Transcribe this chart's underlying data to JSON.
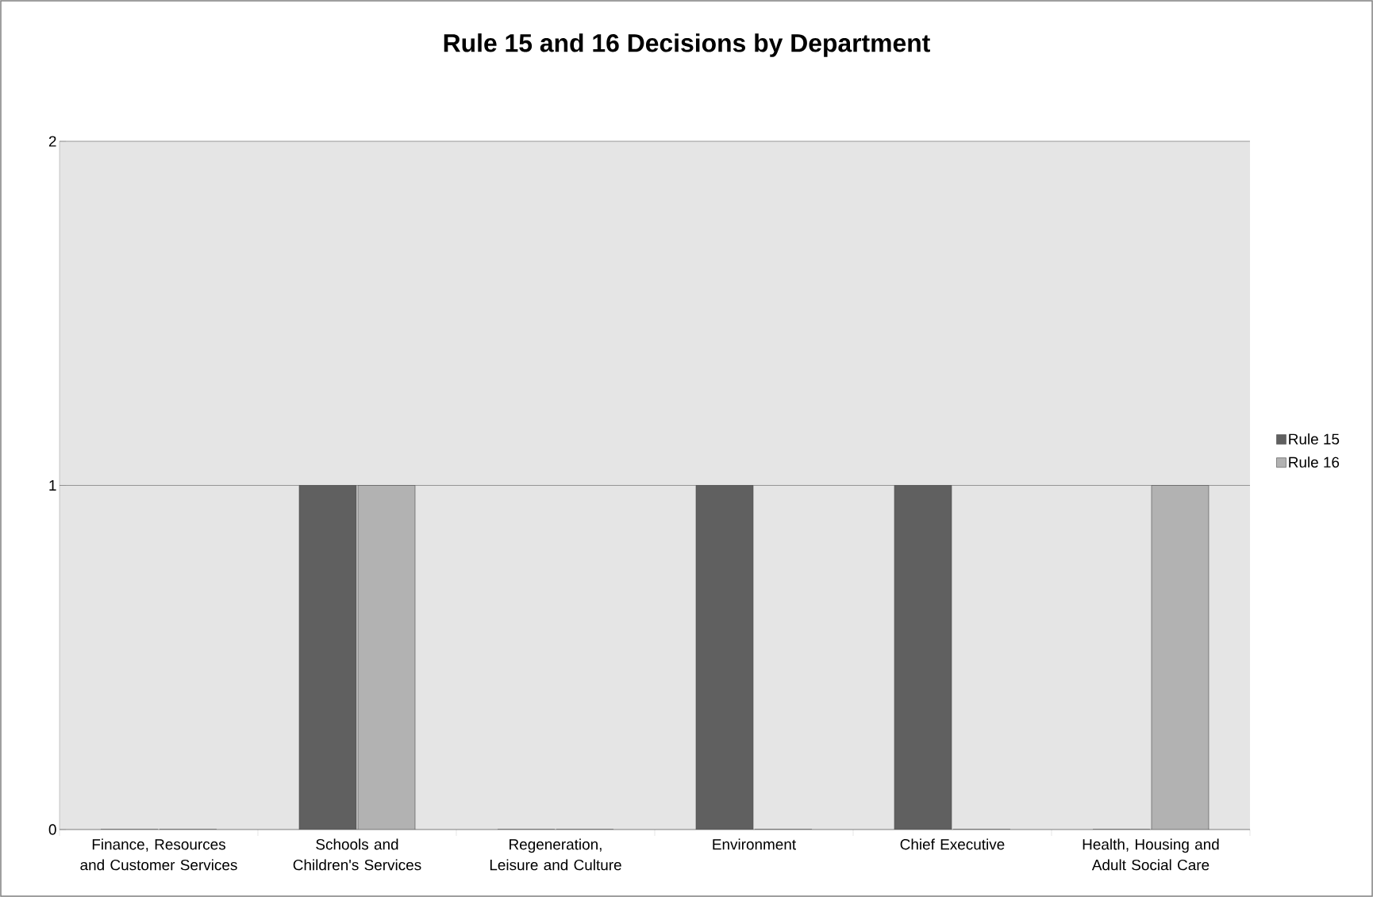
{
  "chart_data": {
    "type": "bar",
    "title": "Rule 15 and 16 Decisions by Department",
    "categories": [
      "Finance, Resources and Customer Services",
      "Schools and Children's Services",
      "Regeneration, Leisure and Culture",
      "Environment",
      "Chief Executive",
      "Health, Housing and Adult Social Care"
    ],
    "series": [
      {
        "name": "Rule 15",
        "color": "#606060",
        "values": [
          0,
          1,
          0,
          1,
          1,
          0
        ]
      },
      {
        "name": "Rule 16",
        "color": "#b2b2b2",
        "values": [
          0,
          1,
          0,
          0,
          0,
          1
        ]
      }
    ],
    "ylim": [
      0,
      2
    ],
    "yticks": [
      0,
      1,
      2
    ],
    "grid": "y",
    "legend": "right"
  }
}
